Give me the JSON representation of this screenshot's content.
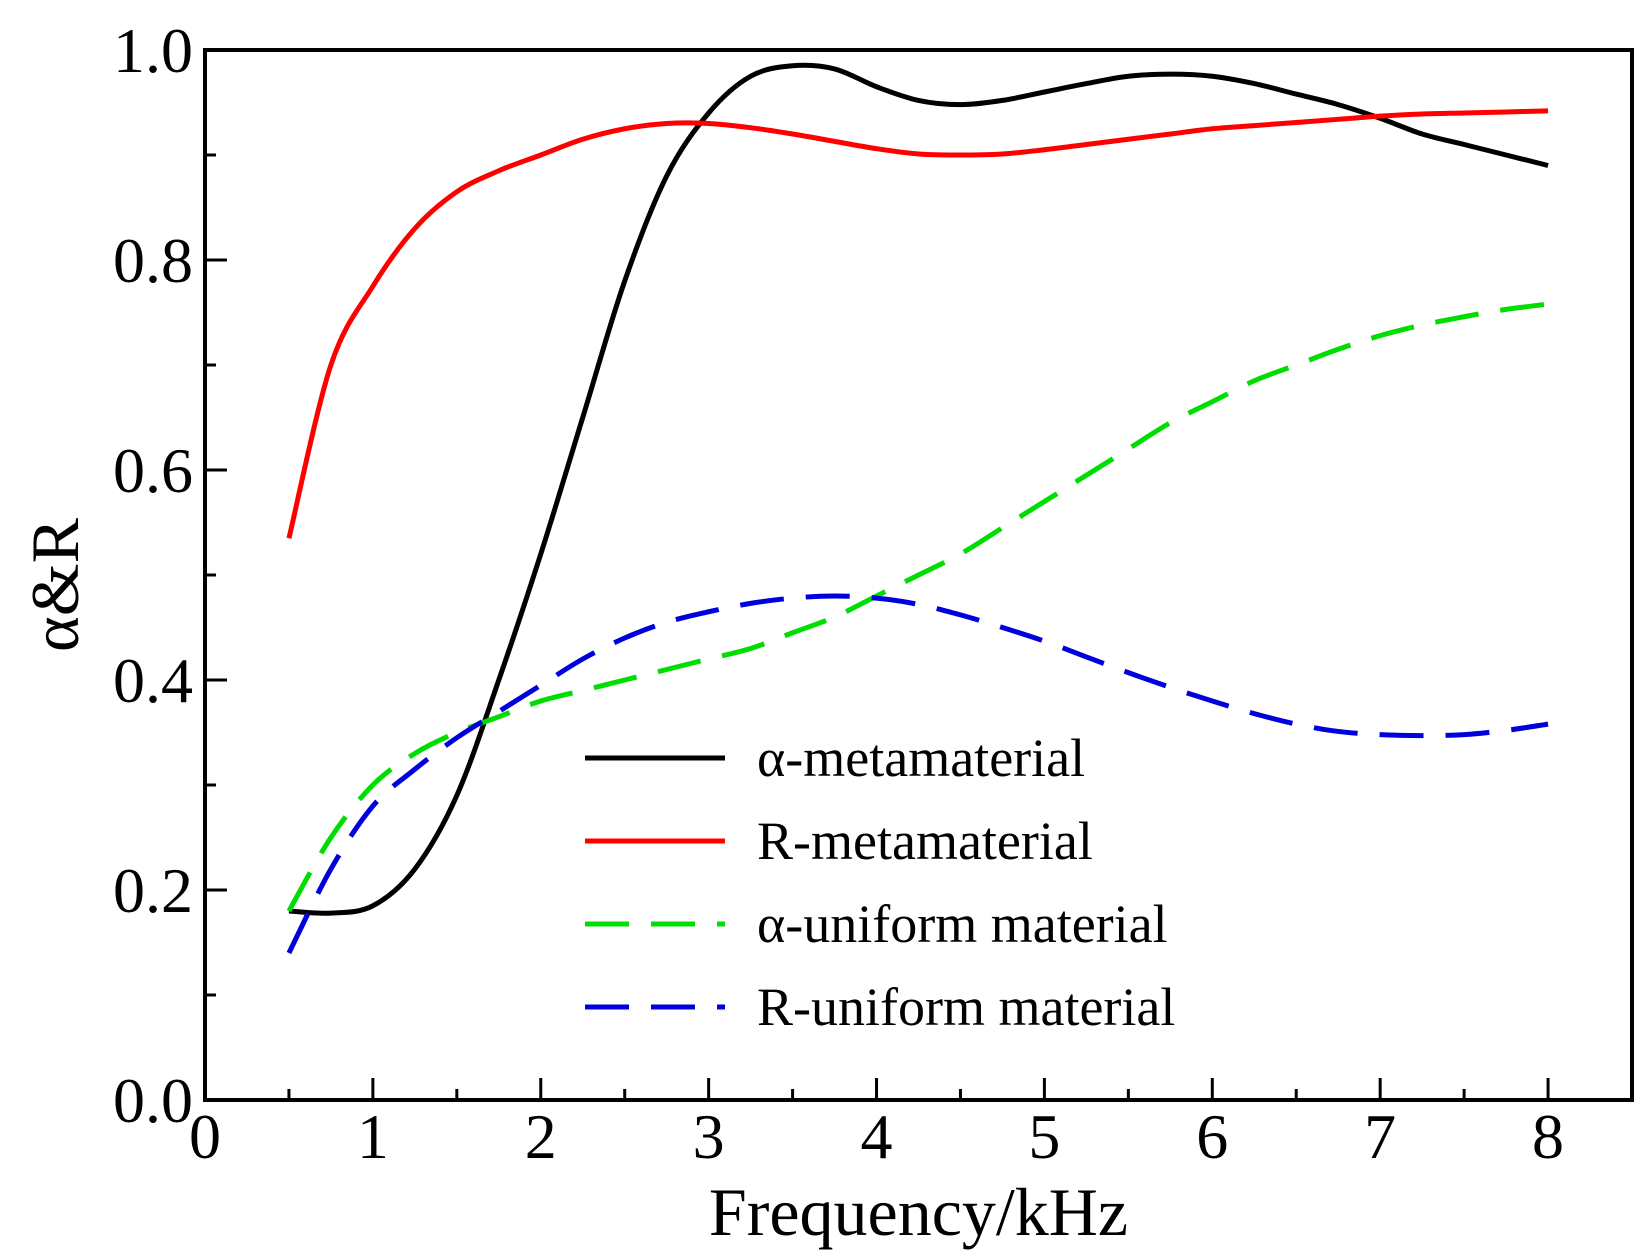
{
  "chart_data": {
    "type": "line",
    "title": "",
    "xlabel": "Frequency/kHz",
    "ylabel": "α&R",
    "xlim": [
      0,
      8.5
    ],
    "ylim": [
      0,
      1.0
    ],
    "x_ticks": [
      0,
      1,
      2,
      3,
      4,
      5,
      6,
      7,
      8
    ],
    "x_tick_labels": [
      "0",
      "1",
      "2",
      "3",
      "4",
      "5",
      "6",
      "7",
      "8"
    ],
    "y_ticks": [
      0.0,
      0.2,
      0.4,
      0.6,
      0.8,
      1.0
    ],
    "y_tick_labels": [
      "0.0",
      "0.2",
      "0.4",
      "0.6",
      "0.8",
      "1.0"
    ],
    "grid": false,
    "legend_position": "bottom-center",
    "series": [
      {
        "name": "α-metamaterial",
        "color": "#000000",
        "dash": "solid",
        "x": [
          0.5,
          0.75,
          1.0,
          1.25,
          1.5,
          1.75,
          2.0,
          2.25,
          2.5,
          2.75,
          3.0,
          3.25,
          3.5,
          3.75,
          4.0,
          4.25,
          4.5,
          4.75,
          5.0,
          5.25,
          5.5,
          5.75,
          6.0,
          6.25,
          6.5,
          6.75,
          7.0,
          7.25,
          7.5,
          7.75,
          8.0
        ],
        "y": [
          0.18,
          0.178,
          0.185,
          0.22,
          0.29,
          0.4,
          0.52,
          0.65,
          0.78,
          0.88,
          0.94,
          0.975,
          0.985,
          0.982,
          0.965,
          0.952,
          0.948,
          0.952,
          0.96,
          0.968,
          0.975,
          0.977,
          0.975,
          0.968,
          0.958,
          0.948,
          0.935,
          0.92,
          0.91,
          0.9,
          0.89
        ]
      },
      {
        "name": "R-metamaterial",
        "color": "#ff0000",
        "dash": "solid",
        "x": [
          0.5,
          0.75,
          1.0,
          1.25,
          1.5,
          1.75,
          2.0,
          2.25,
          2.5,
          2.75,
          3.0,
          3.25,
          3.5,
          3.75,
          4.0,
          4.25,
          4.5,
          4.75,
          5.0,
          5.25,
          5.5,
          5.75,
          6.0,
          6.25,
          6.5,
          6.75,
          7.0,
          7.25,
          7.5,
          7.75,
          8.0
        ],
        "y": [
          0.535,
          0.7,
          0.775,
          0.83,
          0.865,
          0.885,
          0.9,
          0.915,
          0.925,
          0.93,
          0.93,
          0.926,
          0.92,
          0.913,
          0.906,
          0.901,
          0.9,
          0.901,
          0.905,
          0.91,
          0.915,
          0.92,
          0.925,
          0.928,
          0.931,
          0.934,
          0.937,
          0.939,
          0.94,
          0.941,
          0.942
        ]
      },
      {
        "name": "α-uniform material",
        "color": "#00dd00",
        "dash": "dashed",
        "x": [
          0.5,
          0.75,
          1.0,
          1.25,
          1.5,
          1.75,
          2.0,
          2.25,
          2.5,
          2.75,
          3.0,
          3.25,
          3.5,
          3.75,
          4.0,
          4.25,
          4.5,
          4.75,
          5.0,
          5.25,
          5.5,
          5.75,
          6.0,
          6.25,
          6.5,
          6.75,
          7.0,
          7.25,
          7.5,
          7.75,
          8.0
        ],
        "y": [
          0.18,
          0.25,
          0.3,
          0.33,
          0.35,
          0.365,
          0.38,
          0.39,
          0.4,
          0.41,
          0.42,
          0.43,
          0.445,
          0.46,
          0.48,
          0.5,
          0.52,
          0.545,
          0.57,
          0.595,
          0.62,
          0.645,
          0.665,
          0.685,
          0.7,
          0.715,
          0.728,
          0.738,
          0.746,
          0.753,
          0.758
        ]
      },
      {
        "name": "R-uniform material",
        "color": "#0000dd",
        "dash": "dashed",
        "x": [
          0.5,
          0.75,
          1.0,
          1.25,
          1.5,
          1.75,
          2.0,
          2.25,
          2.5,
          2.75,
          3.0,
          3.25,
          3.5,
          3.75,
          4.0,
          4.25,
          4.5,
          4.75,
          5.0,
          5.25,
          5.5,
          5.75,
          6.0,
          6.25,
          6.5,
          6.75,
          7.0,
          7.25,
          7.5,
          7.75,
          8.0
        ],
        "y": [
          0.14,
          0.22,
          0.28,
          0.315,
          0.345,
          0.37,
          0.395,
          0.42,
          0.44,
          0.455,
          0.465,
          0.473,
          0.478,
          0.48,
          0.478,
          0.472,
          0.462,
          0.45,
          0.437,
          0.422,
          0.407,
          0.393,
          0.38,
          0.368,
          0.358,
          0.351,
          0.348,
          0.347,
          0.348,
          0.352,
          0.358
        ]
      }
    ]
  }
}
